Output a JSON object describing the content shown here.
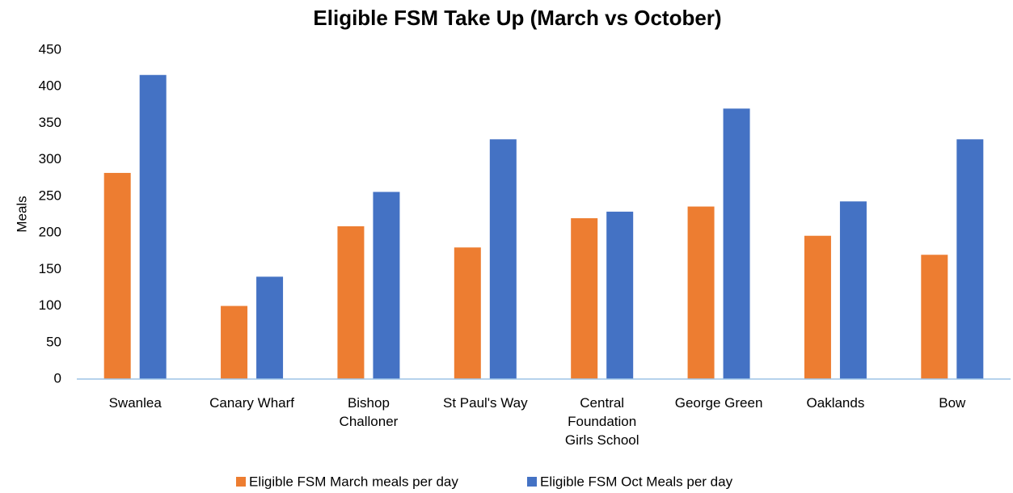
{
  "chart_data": {
    "type": "bar",
    "title": "Eligible FSM Take Up (March vs October)",
    "y_label": "Meals",
    "categories": [
      "Swanlea",
      "Canary Wharf",
      "Bishop Challoner",
      "St Paul's Way",
      "Central Foundation Girls School",
      "George Green",
      "Oaklands",
      "Bow"
    ],
    "series": [
      {
        "name": "Eligible FSM March meals per day",
        "color": "#ed7d31",
        "values": [
          282,
          100,
          209,
          180,
          220,
          236,
          196,
          170
        ]
      },
      {
        "name": "Eligible FSM Oct Meals per day",
        "color": "#4472c4",
        "values": [
          416,
          140,
          256,
          328,
          229,
          370,
          243,
          328
        ]
      }
    ],
    "ylim": [
      0,
      450
    ],
    "yticks": [
      0,
      50,
      100,
      150,
      200,
      250,
      300,
      350,
      400,
      450
    ],
    "grid": false,
    "legend": "bottom"
  }
}
